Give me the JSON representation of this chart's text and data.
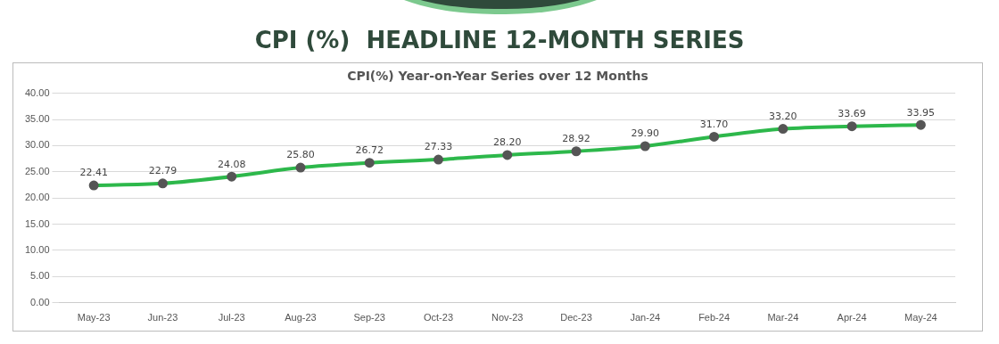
{
  "chart_data": {
    "type": "line",
    "title": "CPI (%)  HEADLINE 12-MONTH SERIES",
    "subtitle": "CPI(%) Year-on-Year Series over 12 Months",
    "categories": [
      "May-23",
      "Jun-23",
      "Jul-23",
      "Aug-23",
      "Sep-23",
      "Oct-23",
      "Nov-23",
      "Dec-23",
      "Jan-24",
      "Feb-24",
      "Mar-24",
      "Apr-24",
      "May-24"
    ],
    "series": [
      {
        "color": "#2db84b",
        "values": [
          22.41,
          22.79,
          24.08,
          25.8,
          26.72,
          27.33,
          28.2,
          28.92,
          29.9,
          31.7,
          33.2,
          33.69,
          33.95
        ],
        "value_labels": [
          "22.41",
          "22.79",
          "24.08",
          "25.80",
          "26.72",
          "27.33",
          "28.20",
          "28.92",
          "29.90",
          "31.70",
          "33.20",
          "33.69",
          "33.95"
        ]
      }
    ],
    "ylim": [
      0,
      40
    ],
    "yticks": [
      {
        "value": 0,
        "label": "0.00"
      },
      {
        "value": 5,
        "label": "5.00"
      },
      {
        "value": 10,
        "label": "10.00"
      },
      {
        "value": 15,
        "label": "15.00"
      },
      {
        "value": 20,
        "label": "20.00"
      },
      {
        "value": 25,
        "label": "25.00"
      },
      {
        "value": 30,
        "label": "30.00"
      },
      {
        "value": 35,
        "label": "35.00"
      },
      {
        "value": 40,
        "label": "40.00"
      }
    ],
    "grid": "y",
    "legend": false,
    "marker": "circle",
    "line_style": "solid"
  }
}
